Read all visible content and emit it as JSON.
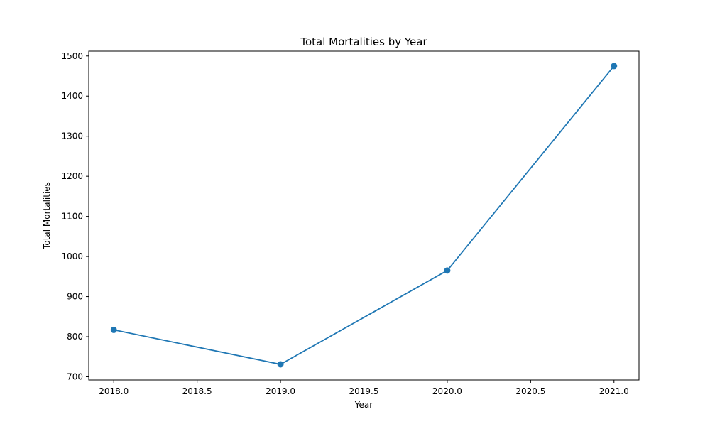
{
  "chart_data": {
    "type": "line",
    "title": "Total Mortalities by Year",
    "xlabel": "Year",
    "ylabel": "Total Mortalities",
    "x": [
      2018.0,
      2019.0,
      2020.0,
      2021.0
    ],
    "y": [
      817,
      731,
      965,
      1475
    ],
    "xlim": [
      2017.85,
      2021.15
    ],
    "ylim": [
      692,
      1512
    ],
    "xticks": [
      2018.0,
      2018.5,
      2019.0,
      2019.5,
      2020.0,
      2020.5,
      2021.0
    ],
    "xtick_labels": [
      "2018.0",
      "2018.5",
      "2019.0",
      "2019.5",
      "2020.0",
      "2020.5",
      "2021.0"
    ],
    "yticks": [
      700,
      800,
      900,
      1000,
      1100,
      1200,
      1300,
      1400,
      1500
    ],
    "ytick_labels": [
      "700",
      "800",
      "900",
      "1000",
      "1100",
      "1200",
      "1300",
      "1400",
      "1500"
    ],
    "grid": false,
    "legend": "none",
    "marker": "circle",
    "line_color": "#1f77b4"
  }
}
